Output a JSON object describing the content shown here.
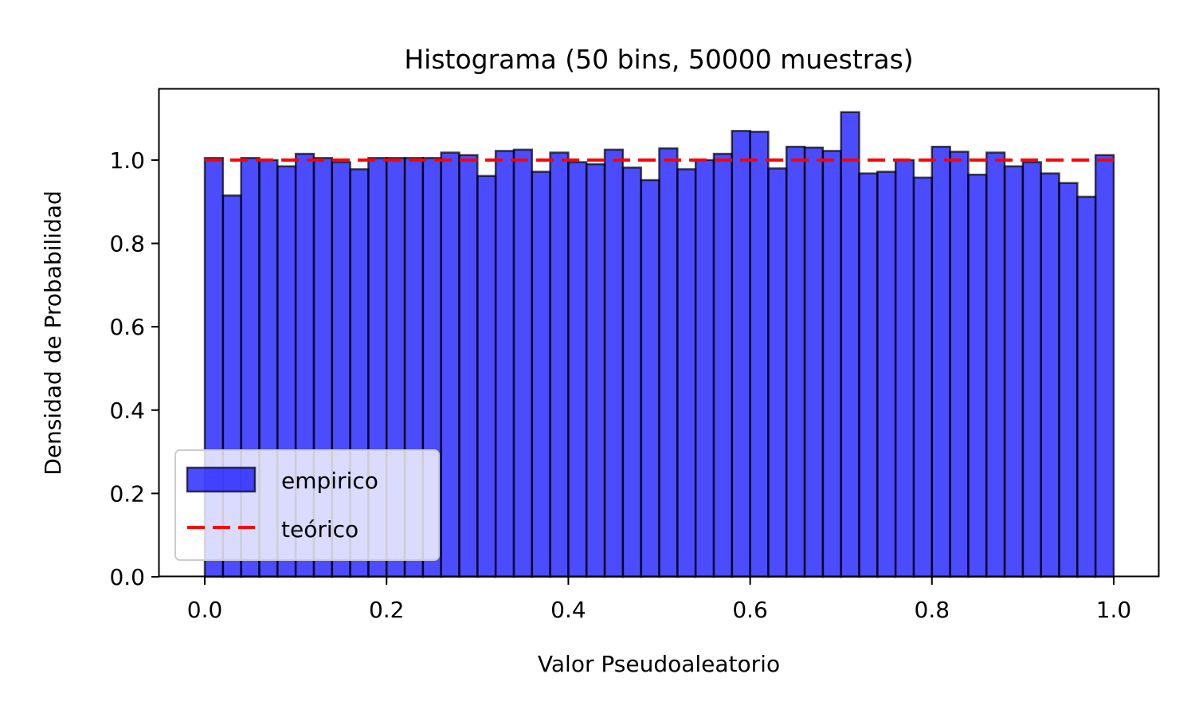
{
  "chart_data": {
    "type": "bar",
    "title": "Histograma (50 bins, 50000 muestras)",
    "xlabel": "Valor Pseudoaleatorio",
    "ylabel": "Densidad de Probabilidad",
    "xlim": [
      -0.05,
      1.05
    ],
    "ylim": [
      0,
      1.17
    ],
    "xticks": [
      "0.0",
      "0.2",
      "0.4",
      "0.6",
      "0.8",
      "1.0"
    ],
    "yticks": [
      "0.0",
      "0.2",
      "0.4",
      "0.6",
      "0.8",
      "1.0"
    ],
    "grid": false,
    "bins": 50,
    "bin_range": [
      0,
      1
    ],
    "series": [
      {
        "name": "empirico",
        "kind": "histogram",
        "color": "#0000ff",
        "alpha": 0.7,
        "edgecolor": "#000000",
        "values": [
          1.005,
          0.915,
          1.005,
          1.0,
          0.985,
          1.015,
          1.005,
          0.995,
          0.978,
          1.005,
          1.005,
          1.005,
          1.005,
          1.018,
          1.012,
          0.962,
          1.022,
          1.025,
          0.972,
          1.018,
          0.995,
          0.99,
          1.025,
          0.982,
          0.952,
          1.028,
          0.978,
          1.0,
          1.015,
          1.07,
          1.068,
          0.98,
          1.032,
          1.03,
          1.022,
          1.115,
          0.968,
          0.972,
          1.0,
          0.958,
          1.032,
          1.02,
          0.965,
          1.018,
          0.985,
          0.995,
          0.968,
          0.945,
          0.912,
          1.012
        ]
      },
      {
        "name": "teórico",
        "kind": "line",
        "color": "#ff0000",
        "linestyle": "dashed",
        "x": [
          0,
          1
        ],
        "y": [
          1.0,
          1.0
        ]
      }
    ],
    "legend": {
      "position": "lower-left",
      "entries": [
        "empirico",
        "teórico"
      ]
    }
  }
}
